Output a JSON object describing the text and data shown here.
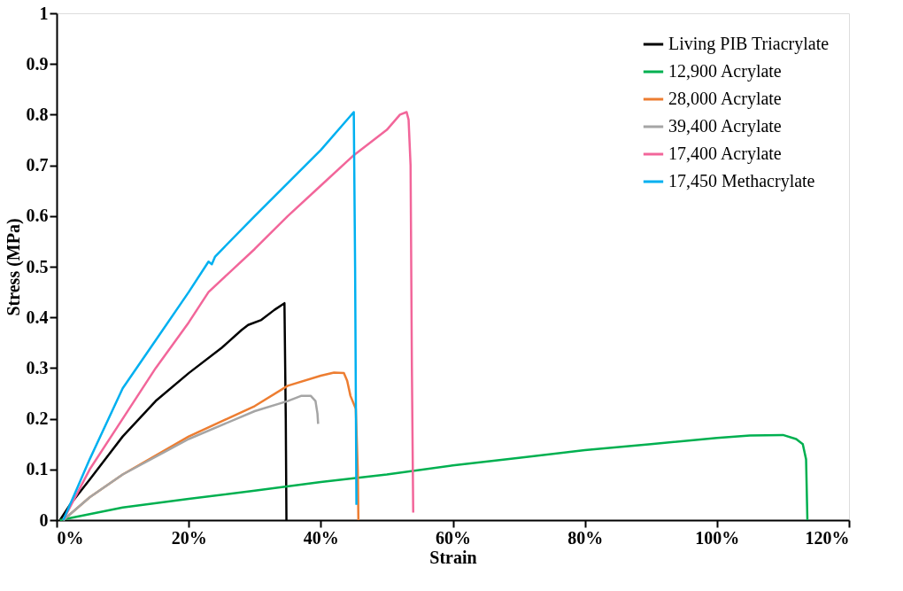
{
  "chart_data": {
    "type": "line",
    "xlabel": "Strain",
    "ylabel": "Stress (MPa)",
    "xlim": [
      0,
      120
    ],
    "ylim": [
      0,
      1
    ],
    "xticks": [
      {
        "value": 0,
        "label": "0%"
      },
      {
        "value": 20,
        "label": "20%"
      },
      {
        "value": 40,
        "label": "40%"
      },
      {
        "value": 60,
        "label": "60%"
      },
      {
        "value": 80,
        "label": "80%"
      },
      {
        "value": 100,
        "label": "100%"
      },
      {
        "value": 120,
        "label": "120%"
      }
    ],
    "yticks": [
      0,
      0.1,
      0.2,
      0.3,
      0.4,
      0.5,
      0.6,
      0.7,
      0.8,
      0.9,
      1
    ],
    "grid": false,
    "legend": "top right",
    "marker": "none",
    "line_style": "solid",
    "series": [
      {
        "name": "Living PIB Triacrylate",
        "color": "#000000",
        "x": [
          0.5,
          2,
          5,
          10,
          15,
          20,
          25,
          28,
          29,
          31,
          33,
          34.5,
          34.7,
          34.8
        ],
        "values": [
          0,
          0.03,
          0.08,
          0.165,
          0.235,
          0.29,
          0.34,
          0.375,
          0.385,
          0.395,
          0.415,
          0.428,
          0.2,
          0
        ]
      },
      {
        "name": "12,900 Acrylate",
        "color": "#00b050",
        "x": [
          0.5,
          10,
          20,
          30,
          40,
          50,
          60,
          70,
          80,
          90,
          100,
          105,
          110,
          112,
          113,
          113.5,
          113.7
        ],
        "values": [
          0,
          0.025,
          0.042,
          0.058,
          0.075,
          0.09,
          0.108,
          0.123,
          0.138,
          0.15,
          0.162,
          0.167,
          0.168,
          0.16,
          0.15,
          0.12,
          0
        ]
      },
      {
        "name": "28,000 Acrylate",
        "color": "#ed7d31",
        "x": [
          1,
          5,
          10,
          20,
          30,
          35,
          40,
          42,
          43.5,
          44,
          44.5,
          45.3,
          45.6,
          45.7
        ],
        "values": [
          0,
          0.045,
          0.09,
          0.165,
          0.225,
          0.265,
          0.285,
          0.291,
          0.29,
          0.275,
          0.245,
          0.22,
          0.1,
          0
        ]
      },
      {
        "name": "39,400 Acrylate",
        "color": "#a5a5a5",
        "x": [
          1,
          5,
          10,
          20,
          30,
          35,
          37,
          38.5,
          39.2,
          39.5,
          39.6
        ],
        "values": [
          0,
          0.045,
          0.09,
          0.16,
          0.215,
          0.235,
          0.245,
          0.245,
          0.235,
          0.21,
          0.19
        ]
      },
      {
        "name": "17,400 Acrylate",
        "color": "#f2669a",
        "x": [
          1,
          3,
          5,
          10,
          15,
          20,
          23,
          30,
          35,
          40,
          45,
          50,
          52,
          53,
          53.3,
          53.6,
          53.8,
          54
        ],
        "values": [
          0,
          0.05,
          0.1,
          0.2,
          0.3,
          0.39,
          0.45,
          0.535,
          0.6,
          0.66,
          0.72,
          0.77,
          0.8,
          0.805,
          0.79,
          0.7,
          0.3,
          0.015
        ]
      },
      {
        "name": "17,450 Methacrylate",
        "color": "#00b0f0",
        "x": [
          1,
          3,
          5,
          10,
          15,
          20,
          23,
          23.5,
          24,
          30,
          35,
          40,
          45,
          45.2,
          45.4
        ],
        "values": [
          0,
          0.06,
          0.12,
          0.26,
          0.355,
          0.45,
          0.51,
          0.505,
          0.52,
          0.6,
          0.665,
          0.73,
          0.805,
          0.5,
          0.03
        ]
      }
    ]
  }
}
